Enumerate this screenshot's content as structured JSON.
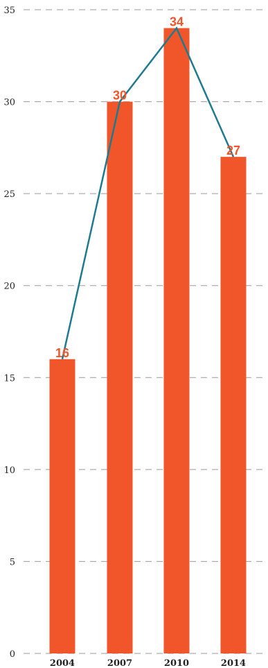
{
  "chart_data": {
    "type": "bar",
    "categories": [
      "2004",
      "2007",
      "2010",
      "2014"
    ],
    "values": [
      16,
      30,
      34,
      27
    ],
    "line_values": [
      16,
      30,
      34,
      27
    ],
    "data_labels": [
      "16",
      "30",
      "34",
      "27"
    ],
    "ylim": [
      0,
      35
    ],
    "yticks": [
      0,
      5,
      10,
      15,
      20,
      25,
      30,
      35
    ],
    "ytick_labels": [
      "0",
      "5",
      "10",
      "15",
      "20",
      "25",
      "30",
      "35"
    ],
    "grid": true,
    "grid_style": "dashed",
    "colors": {
      "bar": "#f0562a",
      "line": "#1d7a8f",
      "data_label": "#f0562a",
      "grid": "#999999",
      "text": "#222222"
    }
  }
}
